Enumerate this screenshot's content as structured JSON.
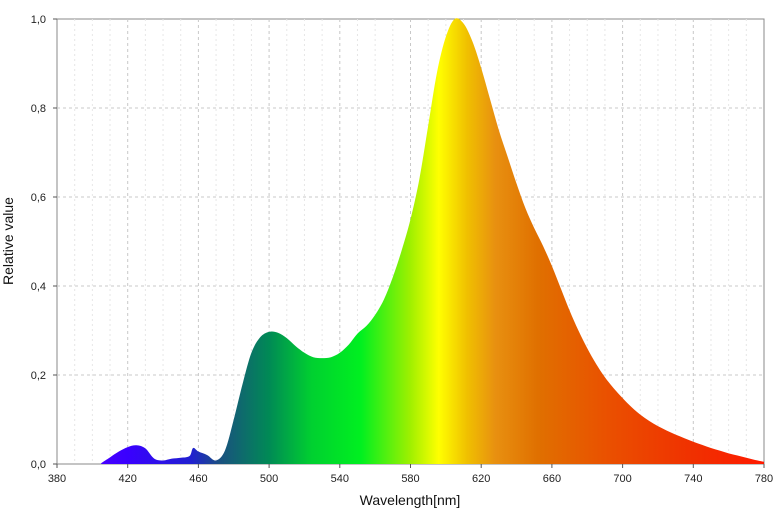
{
  "chart_data": {
    "type": "area",
    "title": "",
    "xlabel": "Wavelength[nm]",
    "ylabel": "Relative value",
    "xlim": [
      380,
      780
    ],
    "ylim": [
      0,
      1.0
    ],
    "grid": true,
    "x_ticks": [
      380,
      420,
      460,
      500,
      540,
      580,
      620,
      660,
      700,
      740,
      780
    ],
    "y_ticks": [
      0,
      0.2,
      0.4,
      0.6,
      0.8,
      1.0
    ],
    "x_tick_labels": [
      "380",
      "420",
      "460",
      "500",
      "540",
      "580",
      "620",
      "660",
      "700",
      "740",
      "780"
    ],
    "y_tick_labels": [
      "0,0",
      "0,2",
      "0,4",
      "0,6",
      "0,8",
      "1,0"
    ],
    "fill": "spectral-gradient",
    "series": [
      {
        "x": [
          405,
          410,
          415,
          420,
          425,
          430,
          435,
          440,
          445,
          450,
          455,
          457,
          460,
          465,
          470,
          475,
          480,
          485,
          490,
          495,
          500,
          505,
          510,
          515,
          520,
          525,
          530,
          535,
          540,
          545,
          550,
          555,
          560,
          565,
          570,
          575,
          580,
          585,
          590,
          595,
          600,
          605,
          610,
          615,
          620,
          625,
          630,
          635,
          640,
          645,
          650,
          655,
          660,
          665,
          670,
          675,
          680,
          685,
          690,
          695,
          700,
          705,
          710,
          715,
          720,
          725,
          730,
          735,
          740,
          745,
          750,
          755,
          760,
          765,
          770,
          775,
          780
        ],
        "y": [
          0.002,
          0.015,
          0.028,
          0.038,
          0.042,
          0.035,
          0.012,
          0.008,
          0.012,
          0.014,
          0.018,
          0.036,
          0.028,
          0.02,
          0.008,
          0.03,
          0.1,
          0.18,
          0.25,
          0.285,
          0.297,
          0.295,
          0.283,
          0.265,
          0.25,
          0.24,
          0.238,
          0.24,
          0.25,
          0.268,
          0.293,
          0.31,
          0.335,
          0.37,
          0.42,
          0.48,
          0.55,
          0.64,
          0.76,
          0.88,
          0.96,
          1.0,
          0.99,
          0.95,
          0.89,
          0.82,
          0.75,
          0.69,
          0.63,
          0.575,
          0.53,
          0.49,
          0.445,
          0.395,
          0.345,
          0.3,
          0.26,
          0.225,
          0.195,
          0.17,
          0.148,
          0.128,
          0.111,
          0.097,
          0.085,
          0.075,
          0.066,
          0.058,
          0.05,
          0.043,
          0.036,
          0.03,
          0.024,
          0.019,
          0.014,
          0.009,
          0.005
        ]
      }
    ]
  }
}
